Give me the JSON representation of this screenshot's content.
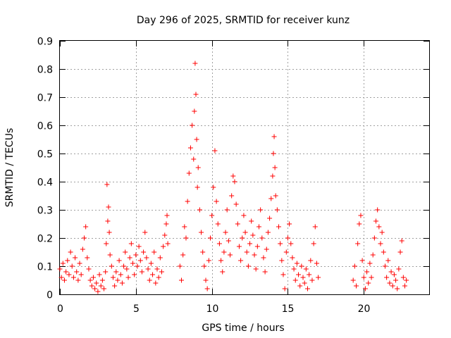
{
  "chart_data": {
    "type": "scatter",
    "title": "Day 296 of 2025, SRMTID for receiver kunz",
    "xlabel": "GPS time / hours",
    "ylabel": "SRMTID / TECUs",
    "xlim": [
      0,
      24.3
    ],
    "ylim": [
      0,
      0.9
    ],
    "xticks": [
      0,
      5,
      10,
      15,
      20
    ],
    "yticks": [
      0,
      0.1,
      0.2,
      0.3,
      0.4,
      0.5,
      0.6,
      0.7,
      0.8,
      0.9
    ],
    "xtick_labels": [
      "0",
      "5",
      "10",
      "15",
      "20"
    ],
    "ytick_labels": [
      "0",
      "0.1",
      "0.2",
      "0.3",
      "0.4",
      "0.5",
      "0.6",
      "0.7",
      "0.8",
      "0.9"
    ],
    "grid": true,
    "marker": "+",
    "color": "#ff0000",
    "series": [
      {
        "name": "SRMTID",
        "points": [
          [
            0.0,
            0.09
          ],
          [
            0.1,
            0.06
          ],
          [
            0.2,
            0.11
          ],
          [
            0.3,
            0.05
          ],
          [
            0.4,
            0.08
          ],
          [
            0.5,
            0.12
          ],
          [
            0.6,
            0.07
          ],
          [
            0.7,
            0.15
          ],
          [
            0.8,
            0.1
          ],
          [
            0.9,
            0.06
          ],
          [
            1.0,
            0.13
          ],
          [
            1.1,
            0.08
          ],
          [
            1.2,
            0.05
          ],
          [
            1.3,
            0.11
          ],
          [
            1.4,
            0.07
          ],
          [
            1.5,
            0.16
          ],
          [
            1.6,
            0.2
          ],
          [
            1.7,
            0.24
          ],
          [
            1.8,
            0.13
          ],
          [
            1.9,
            0.09
          ],
          [
            2.0,
            0.05
          ],
          [
            2.1,
            0.03
          ],
          [
            2.2,
            0.06
          ],
          [
            2.3,
            0.02
          ],
          [
            2.4,
            0.04
          ],
          [
            2.5,
            0.01
          ],
          [
            2.6,
            0.07
          ],
          [
            2.7,
            0.03
          ],
          [
            2.8,
            0.05
          ],
          [
            2.9,
            0.02
          ],
          [
            3.0,
            0.08
          ],
          [
            3.05,
            0.18
          ],
          [
            3.1,
            0.39
          ],
          [
            3.15,
            0.26
          ],
          [
            3.2,
            0.31
          ],
          [
            3.25,
            0.22
          ],
          [
            3.3,
            0.14
          ],
          [
            3.4,
            0.1
          ],
          [
            3.5,
            0.06
          ],
          [
            3.6,
            0.03
          ],
          [
            3.7,
            0.08
          ],
          [
            3.8,
            0.05
          ],
          [
            3.9,
            0.12
          ],
          [
            4.0,
            0.07
          ],
          [
            4.1,
            0.04
          ],
          [
            4.2,
            0.1
          ],
          [
            4.3,
            0.15
          ],
          [
            4.4,
            0.09
          ],
          [
            4.5,
            0.06
          ],
          [
            4.6,
            0.13
          ],
          [
            4.7,
            0.18
          ],
          [
            4.8,
            0.11
          ],
          [
            4.9,
            0.07
          ],
          [
            5.0,
            0.14
          ],
          [
            5.1,
            0.1
          ],
          [
            5.2,
            0.17
          ],
          [
            5.3,
            0.12
          ],
          [
            5.4,
            0.08
          ],
          [
            5.5,
            0.15
          ],
          [
            5.6,
            0.22
          ],
          [
            5.7,
            0.13
          ],
          [
            5.8,
            0.09
          ],
          [
            5.9,
            0.05
          ],
          [
            6.0,
            0.11
          ],
          [
            6.1,
            0.07
          ],
          [
            6.2,
            0.15
          ],
          [
            6.3,
            0.04
          ],
          [
            6.4,
            0.09
          ],
          [
            6.5,
            0.06
          ],
          [
            6.6,
            0.13
          ],
          [
            6.7,
            0.08
          ],
          [
            6.8,
            0.17
          ],
          [
            6.9,
            0.21
          ],
          [
            7.0,
            0.25
          ],
          [
            7.05,
            0.28
          ],
          [
            7.1,
            0.18
          ],
          [
            7.9,
            0.1
          ],
          [
            8.0,
            0.05
          ],
          [
            8.1,
            0.14
          ],
          [
            8.2,
            0.24
          ],
          [
            8.3,
            0.2
          ],
          [
            8.4,
            0.33
          ],
          [
            8.5,
            0.43
          ],
          [
            8.6,
            0.52
          ],
          [
            8.7,
            0.6
          ],
          [
            8.8,
            0.48
          ],
          [
            8.85,
            0.65
          ],
          [
            8.9,
            0.82
          ],
          [
            8.95,
            0.71
          ],
          [
            9.0,
            0.55
          ],
          [
            9.05,
            0.38
          ],
          [
            9.1,
            0.45
          ],
          [
            9.2,
            0.3
          ],
          [
            9.3,
            0.22
          ],
          [
            9.4,
            0.15
          ],
          [
            9.5,
            0.1
          ],
          [
            9.6,
            0.05
          ],
          [
            9.7,
            0.02
          ],
          [
            9.8,
            0.12
          ],
          [
            9.9,
            0.2
          ],
          [
            10.0,
            0.28
          ],
          [
            10.1,
            0.38
          ],
          [
            10.2,
            0.51
          ],
          [
            10.3,
            0.33
          ],
          [
            10.4,
            0.25
          ],
          [
            10.5,
            0.18
          ],
          [
            10.6,
            0.12
          ],
          [
            10.7,
            0.08
          ],
          [
            10.8,
            0.15
          ],
          [
            10.9,
            0.22
          ],
          [
            11.0,
            0.3
          ],
          [
            11.1,
            0.19
          ],
          [
            11.2,
            0.14
          ],
          [
            11.3,
            0.35
          ],
          [
            11.4,
            0.42
          ],
          [
            11.5,
            0.4
          ],
          [
            11.6,
            0.32
          ],
          [
            11.7,
            0.25
          ],
          [
            11.8,
            0.17
          ],
          [
            11.9,
            0.12
          ],
          [
            12.0,
            0.2
          ],
          [
            12.1,
            0.28
          ],
          [
            12.2,
            0.22
          ],
          [
            12.3,
            0.15
          ],
          [
            12.4,
            0.1
          ],
          [
            12.5,
            0.18
          ],
          [
            12.6,
            0.26
          ],
          [
            12.7,
            0.21
          ],
          [
            12.8,
            0.14
          ],
          [
            12.9,
            0.09
          ],
          [
            13.0,
            0.17
          ],
          [
            13.1,
            0.24
          ],
          [
            13.2,
            0.3
          ],
          [
            13.3,
            0.2
          ],
          [
            13.4,
            0.13
          ],
          [
            13.5,
            0.08
          ],
          [
            13.6,
            0.16
          ],
          [
            13.7,
            0.22
          ],
          [
            13.8,
            0.27
          ],
          [
            13.9,
            0.34
          ],
          [
            14.0,
            0.42
          ],
          [
            14.05,
            0.5
          ],
          [
            14.1,
            0.56
          ],
          [
            14.15,
            0.45
          ],
          [
            14.2,
            0.35
          ],
          [
            14.3,
            0.3
          ],
          [
            14.4,
            0.24
          ],
          [
            14.5,
            0.18
          ],
          [
            14.6,
            0.12
          ],
          [
            14.7,
            0.07
          ],
          [
            14.8,
            0.02
          ],
          [
            14.9,
            0.15
          ],
          [
            15.0,
            0.2
          ],
          [
            15.1,
            0.25
          ],
          [
            15.2,
            0.18
          ],
          [
            15.3,
            0.13
          ],
          [
            15.4,
            0.09
          ],
          [
            15.5,
            0.05
          ],
          [
            15.6,
            0.11
          ],
          [
            15.7,
            0.07
          ],
          [
            15.8,
            0.03
          ],
          [
            15.9,
            0.1
          ],
          [
            16.0,
            0.06
          ],
          [
            16.1,
            0.04
          ],
          [
            16.2,
            0.09
          ],
          [
            16.3,
            0.02
          ],
          [
            16.4,
            0.07
          ],
          [
            16.5,
            0.12
          ],
          [
            16.6,
            0.05
          ],
          [
            16.7,
            0.18
          ],
          [
            16.8,
            0.24
          ],
          [
            16.9,
            0.11
          ],
          [
            17.0,
            0.06
          ],
          [
            19.3,
            0.05
          ],
          [
            19.4,
            0.1
          ],
          [
            19.5,
            0.03
          ],
          [
            19.6,
            0.18
          ],
          [
            19.7,
            0.25
          ],
          [
            19.8,
            0.28
          ],
          [
            19.9,
            0.12
          ],
          [
            20.0,
            0.06
          ],
          [
            20.1,
            0.02
          ],
          [
            20.2,
            0.08
          ],
          [
            20.3,
            0.04
          ],
          [
            20.4,
            0.11
          ],
          [
            20.5,
            0.06
          ],
          [
            20.6,
            0.14
          ],
          [
            20.7,
            0.2
          ],
          [
            20.8,
            0.26
          ],
          [
            20.9,
            0.3
          ],
          [
            21.0,
            0.24
          ],
          [
            21.1,
            0.18
          ],
          [
            21.2,
            0.22
          ],
          [
            21.3,
            0.15
          ],
          [
            21.4,
            0.1
          ],
          [
            21.5,
            0.06
          ],
          [
            21.6,
            0.12
          ],
          [
            21.7,
            0.04
          ],
          [
            21.8,
            0.08
          ],
          [
            21.9,
            0.03
          ],
          [
            22.0,
            0.07
          ],
          [
            22.1,
            0.05
          ],
          [
            22.2,
            0.02
          ],
          [
            22.3,
            0.09
          ],
          [
            22.4,
            0.15
          ],
          [
            22.5,
            0.19
          ],
          [
            22.6,
            0.06
          ],
          [
            22.7,
            0.03
          ],
          [
            22.8,
            0.05
          ]
        ]
      }
    ]
  }
}
